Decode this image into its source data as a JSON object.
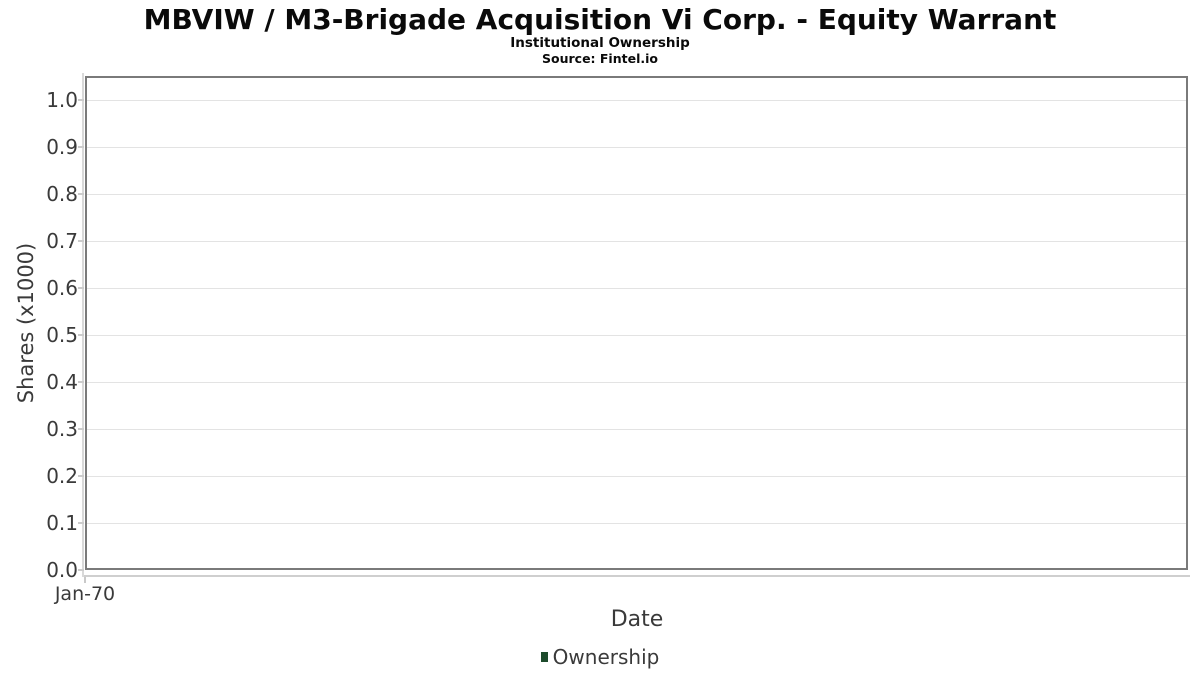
{
  "header": {
    "title": "MBVIW / M3-Brigade Acquisition Vi Corp. - Equity Warrant",
    "subtitle": "Institutional Ownership",
    "source": "Source: Fintel.io"
  },
  "chart_data": {
    "type": "bar",
    "title": "MBVIW / M3-Brigade Acquisition Vi Corp. - Equity Warrant",
    "subtitle": "Institutional Ownership",
    "source": "Source: Fintel.io",
    "xlabel": "Date",
    "ylabel": "Shares (x1000)",
    "ylim": [
      0,
      1.05
    ],
    "ytick_labels": [
      "0.0",
      "0.1",
      "0.2",
      "0.3",
      "0.4",
      "0.5",
      "0.6",
      "0.7",
      "0.8",
      "0.9",
      "1.0"
    ],
    "xtick_labels": [
      "Jan-70"
    ],
    "grid": "horizontal",
    "legend_position": "bottom",
    "series": [
      {
        "name": "Ownership",
        "color": "#1d4b2c",
        "x": [],
        "values": []
      }
    ]
  },
  "colors": {
    "background": "#ffffff",
    "plot_border": "#7a7a7a",
    "gridline": "#e3e3e3",
    "axis_tick": "#cccccc",
    "axis_line": "#cfcfcf",
    "label_text": "#3a3a3a",
    "title_text": "#0a0a0a",
    "ownership_green": "#1d4b2c"
  }
}
